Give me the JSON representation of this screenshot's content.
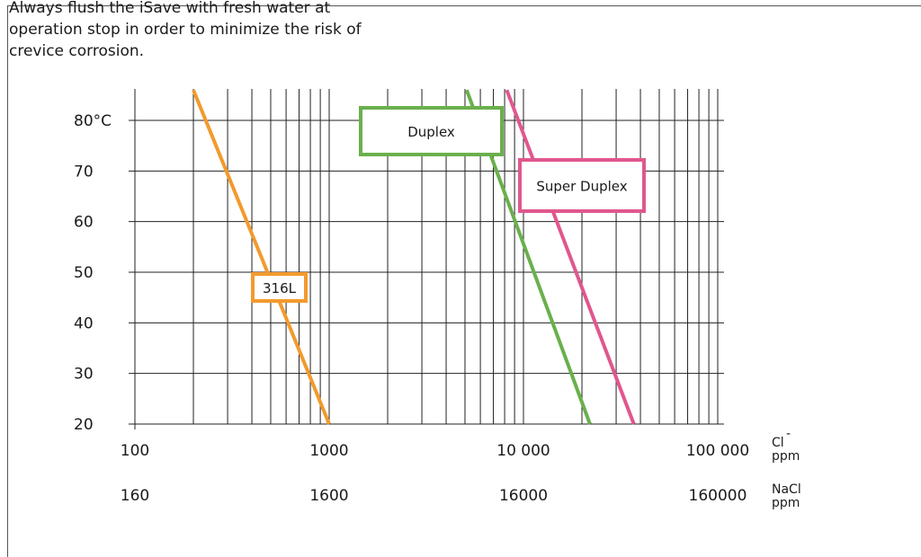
{
  "note": {
    "lines": [
      "Always flush the iSave with fresh water at",
      "operation stop in order to minimize the risk of",
      "crevice corrosion."
    ]
  },
  "chart_data": {
    "type": "line",
    "title": "",
    "xscale": "log",
    "xlim": [
      100,
      130000
    ],
    "ylim": [
      20,
      86
    ],
    "ylabel": "°C",
    "xlabel": "Cl⁻ ppm",
    "secondary_xlabel": "NaCl ppm",
    "y_ticks": [
      {
        "value": 80,
        "label": "80°C"
      },
      {
        "value": 70,
        "label": "70"
      },
      {
        "value": 60,
        "label": "60"
      },
      {
        "value": 50,
        "label": "50"
      },
      {
        "value": 40,
        "label": "40"
      },
      {
        "value": 30,
        "label": "30"
      },
      {
        "value": 20,
        "label": "20"
      }
    ],
    "x_ticks": [
      {
        "value": 100,
        "label": "100"
      },
      {
        "value": 1000,
        "label": "1000"
      },
      {
        "value": 10000,
        "label": "10 000"
      },
      {
        "value": 100000,
        "label": "100 000"
      }
    ],
    "secondary_x_ticks": [
      {
        "value": 100,
        "label": "160"
      },
      {
        "value": 1000,
        "label": "1600"
      },
      {
        "value": 10000,
        "label": "16000"
      },
      {
        "value": 100000,
        "label": "160000"
      }
    ],
    "axis_units": {
      "cl_symbol": "Cl",
      "cl_superscript": "-",
      "cl_unit": "ppm",
      "nacl_symbol": "NaCl",
      "nacl_unit": "ppm"
    },
    "grid": true,
    "series": [
      {
        "name": "316L",
        "color": "#f29a2e",
        "points": [
          [
            200,
            86
          ],
          [
            1000,
            20
          ]
        ]
      },
      {
        "name": "Duplex",
        "color": "#6ab04c",
        "points": [
          [
            5100,
            86
          ],
          [
            22000,
            20
          ]
        ]
      },
      {
        "name": "Super Duplex",
        "color": "#e0578e",
        "points": [
          [
            8200,
            86
          ],
          [
            37000,
            20
          ]
        ]
      }
    ],
    "annotations": [
      {
        "series": "316L",
        "text": "316L",
        "color": "#f29a2e"
      },
      {
        "series": "Duplex",
        "text": "Duplex",
        "color": "#6ab04c"
      },
      {
        "series": "Super Duplex",
        "text": "Super Duplex",
        "color": "#e0578e"
      }
    ]
  }
}
